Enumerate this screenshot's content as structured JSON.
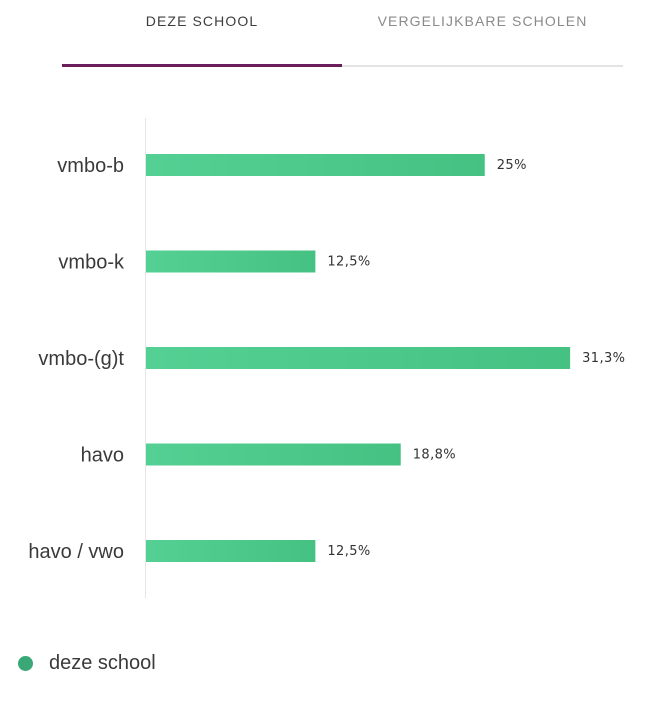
{
  "tabs": [
    {
      "label": "DEZE SCHOOL",
      "active": true
    },
    {
      "label": "VERGELIJKBARE SCHOLEN",
      "active": false
    }
  ],
  "colors": {
    "accent": "#6b1e5b",
    "bar": "#4cc888",
    "legend_dot": "#3aa876"
  },
  "legend": {
    "label": "deze school"
  },
  "chart_data": {
    "type": "bar",
    "orientation": "horizontal",
    "categories": [
      "vmbo-b",
      "vmbo-k",
      "vmbo-(g)t",
      "havo",
      "havo / vwo"
    ],
    "values": [
      25,
      12.5,
      31.3,
      18.8,
      12.5
    ],
    "value_labels": [
      "25%",
      "12,5%",
      "31,3%",
      "18,8%",
      "12,5%"
    ],
    "series": [
      {
        "name": "deze school",
        "values": [
          25,
          12.5,
          31.3,
          18.8,
          12.5
        ]
      }
    ],
    "xlim": [
      0,
      40
    ],
    "grid": false,
    "legend_position": "bottom-left"
  }
}
